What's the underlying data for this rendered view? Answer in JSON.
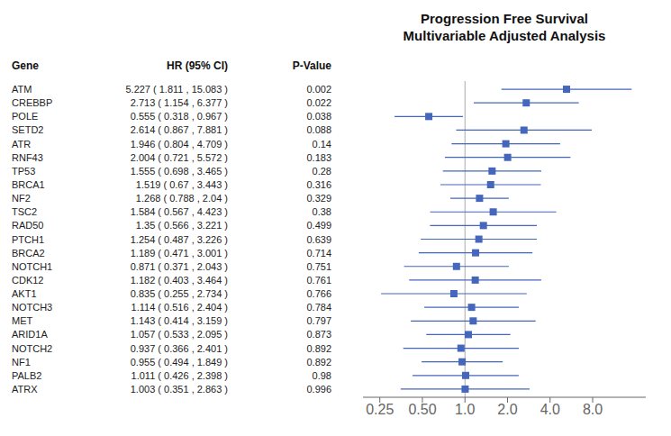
{
  "chart_data": {
    "type": "forest",
    "title": "Progression Free Survival",
    "subtitle": "Multivariable Adjusted Analysis",
    "column_headers": [
      "Gene",
      "HR (95% CI)",
      "P-Value"
    ],
    "categories": [
      "ATM",
      "CREBBP",
      "POLE",
      "SETD2",
      "ATR",
      "RNF43",
      "TP53",
      "BRCA1",
      "NF2",
      "TSC2",
      "RAD50",
      "PTCH1",
      "BRCA2",
      "NOTCH1",
      "CDK12",
      "AKT1",
      "NOTCH3",
      "MET",
      "ARID1A",
      "NOTCH2",
      "NF1",
      "PALB2",
      "ATRX"
    ],
    "values": [
      5.227,
      2.713,
      0.555,
      2.614,
      1.946,
      2.004,
      1.555,
      1.519,
      1.268,
      1.584,
      1.35,
      1.254,
      1.189,
      0.871,
      1.182,
      0.835,
      1.114,
      1.143,
      1.057,
      0.937,
      0.955,
      1.011,
      1.003
    ],
    "value_labels": [
      "5.227 ( 1.811 , 15.083 )",
      "2.713 ( 1.154 , 6.377 )",
      "0.555 ( 0.318 , 0.967 )",
      "2.614 ( 0.867 , 7.881 )",
      "1.946 ( 0.804 , 4.709 )",
      "2.004 ( 0.721 , 5.572 )",
      "1.555 ( 0.698 , 3.465 )",
      "1.519 ( 0.67 , 3.443 )",
      "1.268 ( 0.788 , 2.04 )",
      "1.584 ( 0.567 , 4.423 )",
      "1.35 ( 0.566 , 3.221 )",
      "1.254 ( 0.487 , 3.226 )",
      "1.189 ( 0.471 , 3.001 )",
      "0.871 ( 0.371 , 2.043 )",
      "1.182 ( 0.403 , 3.464 )",
      "0.835 ( 0.255 , 2.734 )",
      "1.114 ( 0.516 , 2.404 )",
      "1.143 ( 0.414 , 3.159 )",
      "1.057 ( 0.533 , 2.095 )",
      "0.937 ( 0.366 , 2.401 )",
      "0.955 ( 0.494 , 1.849 )",
      "1.011 ( 0.426 , 2.398 )",
      "1.003 ( 0.351 , 2.863 )"
    ],
    "ci_low": [
      1.811,
      1.154,
      0.318,
      0.867,
      0.804,
      0.721,
      0.698,
      0.67,
      0.788,
      0.567,
      0.566,
      0.487,
      0.471,
      0.371,
      0.403,
      0.255,
      0.516,
      0.414,
      0.533,
      0.366,
      0.494,
      0.426,
      0.351
    ],
    "ci_high": [
      15.083,
      6.377,
      0.967,
      7.881,
      4.709,
      5.572,
      3.465,
      3.443,
      2.04,
      4.423,
      3.221,
      3.226,
      3.001,
      2.043,
      3.464,
      2.734,
      2.404,
      3.159,
      2.095,
      2.401,
      1.849,
      2.398,
      2.863
    ],
    "p_values": [
      0.002,
      0.022,
      0.038,
      0.088,
      0.14,
      0.183,
      0.28,
      0.316,
      0.329,
      0.38,
      0.499,
      0.639,
      0.714,
      0.751,
      0.761,
      0.766,
      0.784,
      0.797,
      0.873,
      0.892,
      0.892,
      0.98,
      0.996
    ],
    "color": "#4466bb",
    "reference_line": {
      "x": 1.0,
      "color": "#aaaaaa"
    },
    "log": "x",
    "xlim": [
      0.19,
      19.0
    ],
    "xticks": [
      0.25,
      {
        "value": 0.5,
        "label": "0.50"
      },
      {
        "value": 1.0,
        "label": "1.0"
      },
      {
        "value": 2.0,
        "label": "2.0"
      },
      {
        "value": 4.0,
        "label": "4.0"
      },
      {
        "value": 8.0,
        "label": "8.0"
      }
    ],
    "grid": false
  }
}
